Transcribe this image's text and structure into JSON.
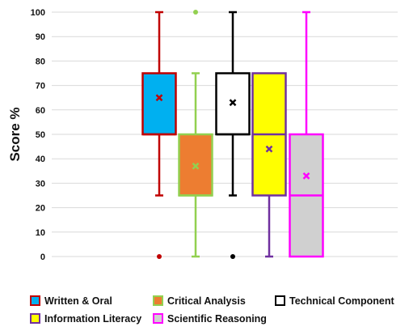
{
  "chart_data": {
    "type": "boxplot",
    "ylabel": "Score %",
    "xlabel": "",
    "title": "",
    "ylim": [
      0,
      100
    ],
    "yticks": [
      0,
      10,
      20,
      30,
      40,
      50,
      60,
      70,
      80,
      90,
      100
    ],
    "grid": true,
    "legend_position": "bottom",
    "series": [
      {
        "name": "Written & Oral",
        "fill": "#00b0f0",
        "stroke": "#c00000",
        "marker_color": "#c00000",
        "whisker_min": 25,
        "q1": 50,
        "median": 50,
        "q3": 75,
        "whisker_max": 100,
        "mean": 65,
        "outliers": [
          0
        ]
      },
      {
        "name": "Critical Analysis",
        "fill": "#ed7d31",
        "stroke": "#92d050",
        "marker_color": "#92d050",
        "whisker_min": 0,
        "q1": 25,
        "median": 25,
        "q3": 50,
        "whisker_max": 75,
        "mean": 37,
        "outliers": [
          100
        ]
      },
      {
        "name": "Technical Component",
        "fill": "#ffffff",
        "stroke": "#000000",
        "marker_color": "#000000",
        "whisker_min": 25,
        "q1": 50,
        "median": 50,
        "q3": 75,
        "whisker_max": 100,
        "mean": 63,
        "outliers": [
          0
        ]
      },
      {
        "name": "Information Literacy",
        "fill": "#ffff00",
        "stroke": "#7030a0",
        "marker_color": "#7030a0",
        "whisker_min": 0,
        "q1": 25,
        "median": 50,
        "q3": 75,
        "whisker_max": 75,
        "mean": 44,
        "outliers": []
      },
      {
        "name": "Scientific Reasoning",
        "fill": "#d0d0d0",
        "stroke": "#ff00ff",
        "marker_color": "#ff00ff",
        "whisker_min": 0,
        "q1": 0,
        "median": 25,
        "q3": 50,
        "whisker_max": 100,
        "mean": 33,
        "outliers": []
      }
    ]
  }
}
